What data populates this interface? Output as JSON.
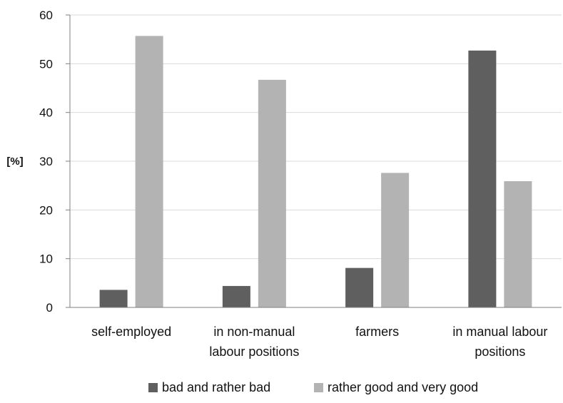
{
  "chart_data": {
    "type": "bar",
    "title": "",
    "xlabel": "",
    "ylabel": "[%]",
    "ylim": [
      0,
      60
    ],
    "yticks": [
      0,
      10,
      20,
      30,
      40,
      50,
      60
    ],
    "grid": true,
    "legend_position": "bottom",
    "categories": [
      [
        "self-employed"
      ],
      [
        "in non-manual",
        "labour positions"
      ],
      [
        "farmers"
      ],
      [
        "in manual labour",
        "positions"
      ]
    ],
    "series": [
      {
        "name": "bad and rather bad",
        "color": "#5f5f5f",
        "values": [
          3.6,
          4.4,
          8.1,
          52.7
        ]
      },
      {
        "name": "rather good and very good",
        "color": "#b3b3b3",
        "values": [
          55.7,
          46.7,
          27.6,
          25.9
        ]
      }
    ]
  }
}
